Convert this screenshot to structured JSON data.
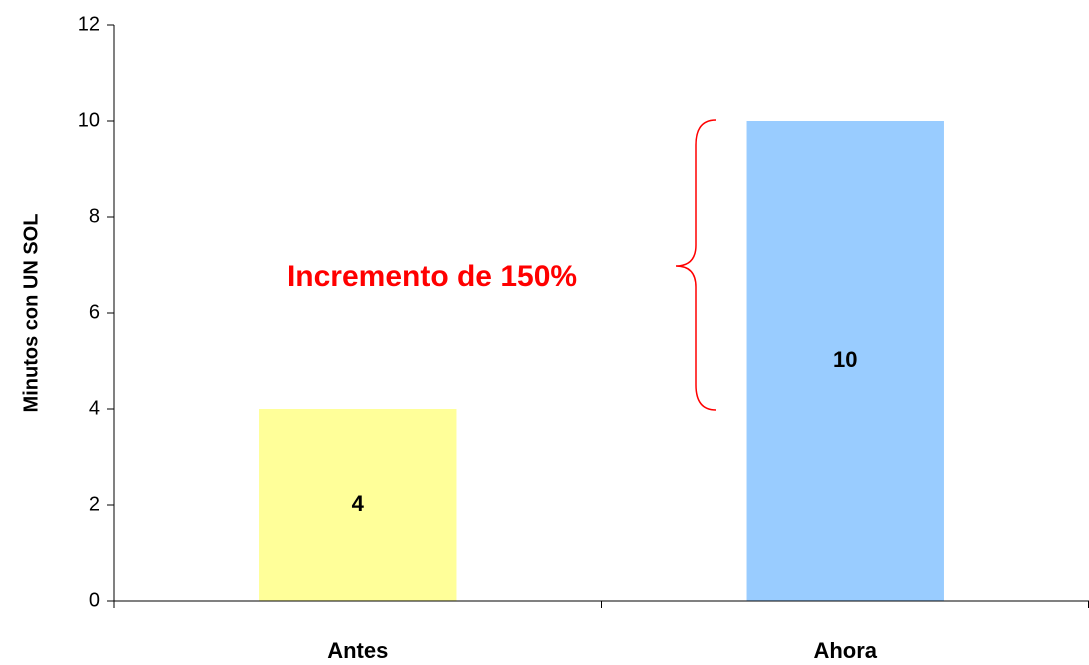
{
  "chart_data": {
    "type": "bar",
    "y_axis_label": "Minutos con UN SOL",
    "annotation": "Incremento de 150%",
    "annotation_color": "#ff0000",
    "categories": [
      "Antes",
      "Ahora"
    ],
    "values": [
      4,
      10
    ],
    "colors": [
      "#ffff99",
      "#99ccff"
    ],
    "ylim": [
      0,
      12
    ],
    "yticks": [
      0,
      2,
      4,
      6,
      8,
      10,
      12
    ],
    "grid": false
  }
}
